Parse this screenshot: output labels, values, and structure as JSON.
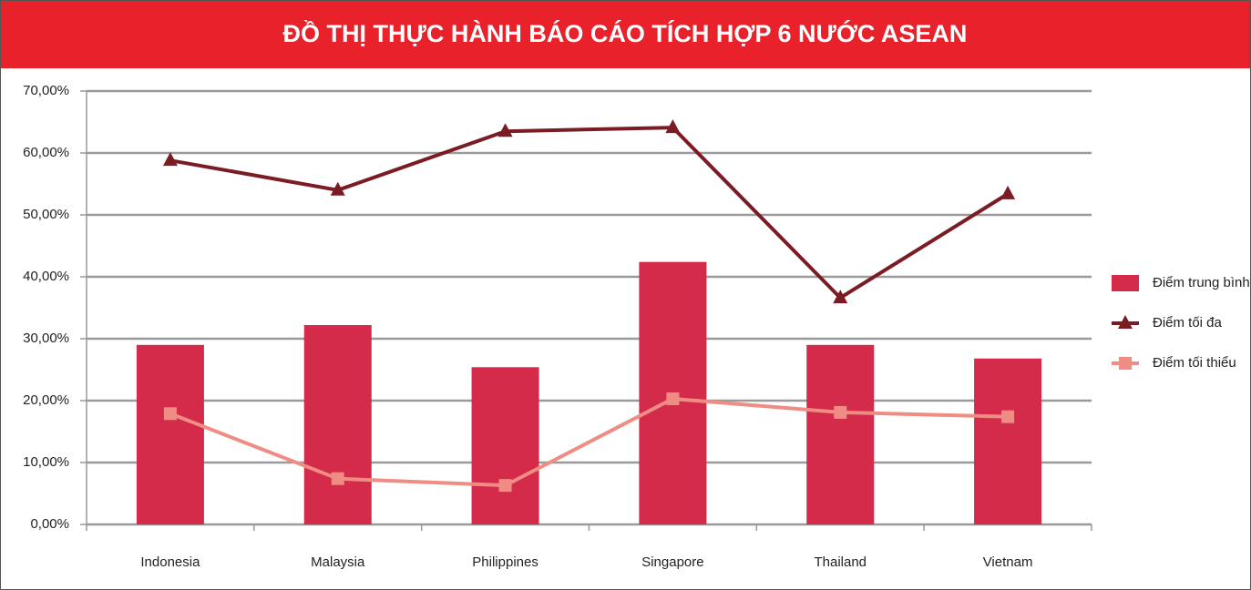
{
  "chart_data": {
    "type": "combo",
    "title": "ĐỒ THỊ THỰC HÀNH BÁO CÁO TÍCH HỢP 6 NƯỚC ASEAN",
    "categories": [
      "Indonesia",
      "Malaysia",
      "Philippines",
      "Singapore",
      "Thailand",
      "Vietnam"
    ],
    "series": [
      {
        "name": "Điểm trung bình",
        "type": "bar",
        "color": "#d42b4b",
        "values": [
          29.0,
          32.2,
          25.4,
          42.4,
          29.0,
          26.8
        ]
      },
      {
        "name": "Điểm tối đa",
        "type": "line",
        "marker": "triangle",
        "color": "#7b1c25",
        "values": [
          58.8,
          54.0,
          63.5,
          64.1,
          36.6,
          53.4
        ]
      },
      {
        "name": "Điểm tối thiểu",
        "type": "line",
        "marker": "square",
        "color": "#ef8c84",
        "values": [
          17.9,
          7.4,
          6.3,
          20.3,
          18.1,
          17.4
        ]
      }
    ],
    "ylim": [
      0,
      70
    ],
    "yticks": [
      {
        "value": 0,
        "label": "0,00%"
      },
      {
        "value": 10,
        "label": "10,00%"
      },
      {
        "value": 20,
        "label": "20,00%"
      },
      {
        "value": 30,
        "label": "30,00%"
      },
      {
        "value": 40,
        "label": "40,00%"
      },
      {
        "value": 50,
        "label": "50,00%"
      },
      {
        "value": 60,
        "label": "60,00%"
      },
      {
        "value": 70,
        "label": "70,00%"
      }
    ],
    "grid": true,
    "legend": "right"
  }
}
